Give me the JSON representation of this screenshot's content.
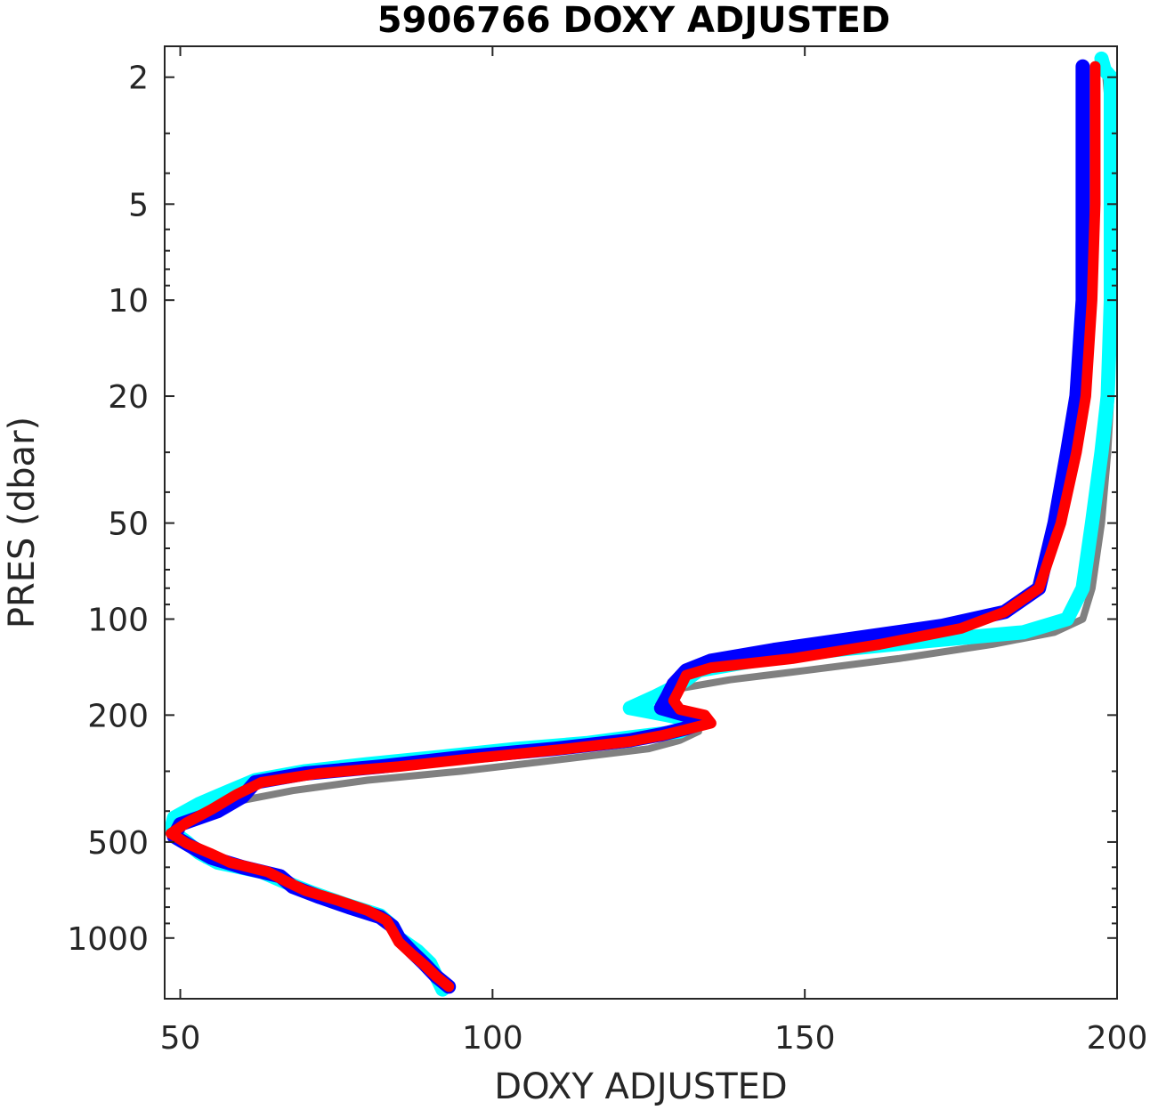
{
  "chart_data": {
    "type": "line",
    "title": "5906766  DOXY ADJUSTED",
    "xlabel": "DOXY ADJUSTED",
    "ylabel": "PRES (dbar)",
    "xlim": [
      47.5,
      200
    ],
    "ylim": [
      1.6,
      1550
    ],
    "yscale": "log",
    "yreverse": true,
    "grid": false,
    "xticks": [
      50,
      100,
      150,
      200
    ],
    "xtick_labels": [
      "50",
      "100",
      "150",
      "200"
    ],
    "yticks": [
      2,
      5,
      10,
      20,
      50,
      100,
      200,
      500,
      1000
    ],
    "ytick_labels": [
      "2",
      "5",
      "10",
      "20",
      "50",
      "100",
      "200",
      "500",
      "1000"
    ],
    "yminor_ticks": [
      3,
      4,
      6,
      7,
      8,
      9,
      30,
      40,
      60,
      70,
      80,
      90,
      300,
      400,
      600,
      700,
      800,
      900
    ],
    "series": [
      {
        "color": "#808080",
        "width": 8,
        "points": [
          [
            198,
            1.8
          ],
          [
            199,
            3
          ],
          [
            199.5,
            10
          ],
          [
            199,
            20
          ],
          [
            198.5,
            30
          ],
          [
            197.5,
            50
          ],
          [
            196,
            80
          ],
          [
            194.5,
            100
          ],
          [
            190,
            110
          ],
          [
            180,
            120
          ],
          [
            165,
            133
          ],
          [
            150,
            145
          ],
          [
            138,
            155
          ],
          [
            130,
            165
          ],
          [
            127,
            180
          ],
          [
            128,
            195
          ],
          [
            131,
            205
          ],
          [
            133,
            225
          ],
          [
            130,
            240
          ],
          [
            125,
            255
          ],
          [
            118,
            265
          ],
          [
            108,
            280
          ],
          [
            95,
            300
          ],
          [
            80,
            320
          ],
          [
            68,
            345
          ],
          [
            60,
            370
          ],
          [
            56,
            400
          ],
          [
            50,
            430
          ],
          [
            48.5,
            470
          ],
          [
            50,
            500
          ],
          [
            52,
            530
          ],
          [
            54,
            570
          ],
          [
            60,
            610
          ],
          [
            66,
            650
          ],
          [
            68,
            700
          ],
          [
            72,
            760
          ],
          [
            78,
            820
          ],
          [
            82,
            880
          ],
          [
            84,
            950
          ],
          [
            86,
            1050
          ],
          [
            89,
            1180
          ],
          [
            91,
            1300
          ],
          [
            93,
            1420
          ]
        ]
      },
      {
        "color": "#00ffff",
        "width": 16,
        "points": [
          [
            197.5,
            1.75
          ],
          [
            198,
            1.9
          ],
          [
            199,
            2
          ],
          [
            199,
            5
          ],
          [
            199,
            10
          ],
          [
            198.5,
            20
          ],
          [
            197.5,
            30
          ],
          [
            196,
            50
          ],
          [
            194.5,
            80
          ],
          [
            192,
            100
          ],
          [
            185,
            110
          ],
          [
            170,
            117
          ],
          [
            155,
            125
          ],
          [
            142,
            135
          ],
          [
            133,
            145
          ],
          [
            130,
            160
          ],
          [
            126,
            175
          ],
          [
            122,
            190
          ],
          [
            128,
            200
          ],
          [
            133,
            210
          ],
          [
            130,
            225
          ],
          [
            122,
            235
          ],
          [
            115,
            245
          ],
          [
            104,
            255
          ],
          [
            92,
            270
          ],
          [
            80,
            285
          ],
          [
            70,
            300
          ],
          [
            62,
            320
          ],
          [
            58,
            345
          ],
          [
            53,
            380
          ],
          [
            49,
            420
          ],
          [
            48.5,
            460
          ],
          [
            51,
            500
          ],
          [
            53,
            540
          ],
          [
            56,
            580
          ],
          [
            63,
            620
          ],
          [
            67,
            670
          ],
          [
            71,
            720
          ],
          [
            76,
            780
          ],
          [
            82,
            850
          ],
          [
            84,
            920
          ],
          [
            85,
            1000
          ],
          [
            88,
            1100
          ],
          [
            90,
            1200
          ],
          [
            91,
            1320
          ],
          [
            92,
            1450
          ]
        ]
      },
      {
        "color": "#0000ff",
        "width": 16,
        "points": [
          [
            194.5,
            1.85
          ],
          [
            194.5,
            5
          ],
          [
            194.5,
            10
          ],
          [
            193.5,
            20
          ],
          [
            192,
            30
          ],
          [
            190,
            50
          ],
          [
            187.5,
            80
          ],
          [
            182,
            95
          ],
          [
            172,
            105
          ],
          [
            158,
            115
          ],
          [
            145,
            125
          ],
          [
            135,
            135
          ],
          [
            131,
            145
          ],
          [
            129,
            160
          ],
          [
            128,
            175
          ],
          [
            127,
            190
          ],
          [
            131,
            200
          ],
          [
            134,
            210
          ],
          [
            131,
            220
          ],
          [
            127,
            230
          ],
          [
            122,
            240
          ],
          [
            110,
            255
          ],
          [
            96,
            270
          ],
          [
            82,
            290
          ],
          [
            70,
            305
          ],
          [
            62,
            325
          ],
          [
            60,
            360
          ],
          [
            56,
            400
          ],
          [
            50,
            440
          ],
          [
            49,
            480
          ],
          [
            52,
            520
          ],
          [
            55,
            560
          ],
          [
            60,
            600
          ],
          [
            66,
            640
          ],
          [
            68,
            690
          ],
          [
            72,
            740
          ],
          [
            77,
            800
          ],
          [
            82,
            860
          ],
          [
            84,
            920
          ],
          [
            85,
            1000
          ],
          [
            87,
            1100
          ],
          [
            89,
            1200
          ],
          [
            91,
            1320
          ],
          [
            93,
            1420
          ]
        ]
      },
      {
        "color": "#ff0000",
        "width": 12,
        "points": [
          [
            196.5,
            1.85
          ],
          [
            196.5,
            5
          ],
          [
            196,
            10
          ],
          [
            195,
            20
          ],
          [
            193.5,
            30
          ],
          [
            191,
            50
          ],
          [
            187.5,
            80
          ],
          [
            182,
            95
          ],
          [
            175,
            107
          ],
          [
            162,
            120
          ],
          [
            148,
            133
          ],
          [
            135,
            142
          ],
          [
            131,
            150
          ],
          [
            130,
            165
          ],
          [
            129,
            180
          ],
          [
            130,
            192
          ],
          [
            134,
            200
          ],
          [
            135,
            212
          ],
          [
            131,
            222
          ],
          [
            127,
            232
          ],
          [
            122,
            242
          ],
          [
            112,
            255
          ],
          [
            98,
            272
          ],
          [
            85,
            290
          ],
          [
            72,
            305
          ],
          [
            63,
            325
          ],
          [
            59,
            355
          ],
          [
            55,
            395
          ],
          [
            51,
            435
          ],
          [
            48.5,
            470
          ],
          [
            51,
            505
          ],
          [
            55,
            545
          ],
          [
            58,
            580
          ],
          [
            64,
            620
          ],
          [
            67,
            665
          ],
          [
            70,
            710
          ],
          [
            75,
            760
          ],
          [
            80,
            820
          ],
          [
            83,
            880
          ],
          [
            84,
            950
          ],
          [
            85,
            1030
          ],
          [
            87,
            1120
          ],
          [
            89,
            1210
          ],
          [
            91,
            1320
          ],
          [
            93,
            1420
          ]
        ]
      }
    ]
  }
}
